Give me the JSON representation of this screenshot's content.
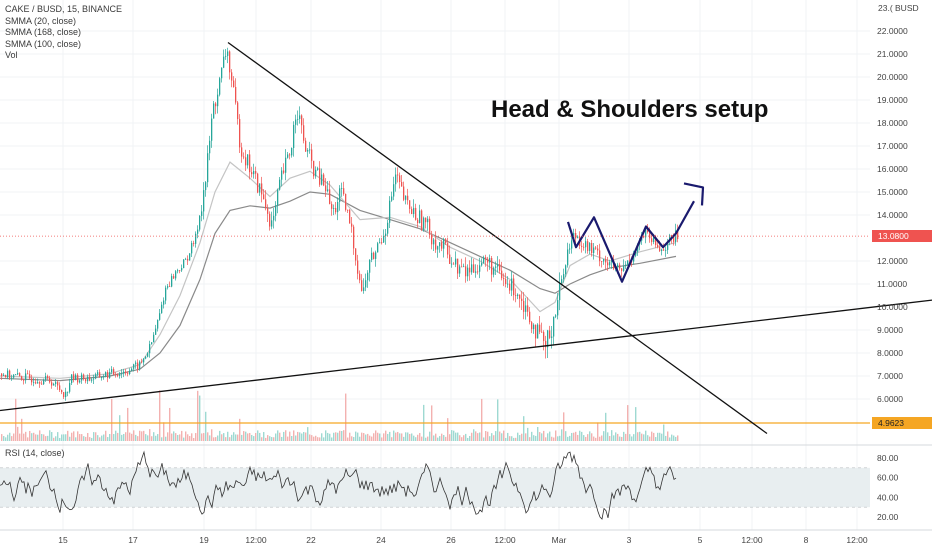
{
  "legend": {
    "symbol": "CAKE / BUSD, 15, BINANCE",
    "ma1": "SMMA (20, close)",
    "ma2": "SMMA (168, close)",
    "ma3": "SMMA (100, close)",
    "vol": "Vol"
  },
  "annotation": "Head & Shoulders setup",
  "unit_label": "23.( BUSD",
  "last_price_label": "13.0800",
  "level_label": "4.9623",
  "rsi_label": "RSI (14, close)",
  "colors": {
    "up": "#26a69a",
    "down": "#ef5350",
    "last_price": "#ef5350",
    "level_line": "#f5a623",
    "pattern": "#1a1a6e",
    "trend": "#111111",
    "rsi_band": "#e8eef0"
  },
  "chart_data": {
    "type": "candlestick",
    "y_axis": {
      "ticks": [
        "22.0000",
        "21.0000",
        "20.0000",
        "19.0000",
        "18.0000",
        "17.0000",
        "16.0000",
        "15.0000",
        "14.0000",
        "12.0000",
        "11.0000",
        "10.0000",
        "9.0000",
        "8.0000",
        "7.0000",
        "6.0000"
      ],
      "values": [
        22,
        21,
        20,
        19,
        18,
        17,
        16,
        15,
        14,
        12,
        11,
        10,
        9,
        8,
        7,
        6
      ],
      "ylim": [
        4.2,
        23.3
      ]
    },
    "x_axis": {
      "labels": [
        "15",
        "17",
        "19",
        "12:00",
        "22",
        "24",
        "26",
        "12:00",
        "Mar",
        "3",
        "5",
        "12:00",
        "8",
        "12:00"
      ]
    },
    "price_path": [
      [
        0,
        7.1
      ],
      [
        12,
        7.0
      ],
      [
        30,
        6.9
      ],
      [
        50,
        6.8
      ],
      [
        65,
        6.2
      ],
      [
        70,
        6.9
      ],
      [
        90,
        6.9
      ],
      [
        110,
        7.1
      ],
      [
        125,
        7.2
      ],
      [
        140,
        7.5
      ],
      [
        150,
        8.3
      ],
      [
        158,
        9.5
      ],
      [
        165,
        10.8
      ],
      [
        175,
        11.5
      ],
      [
        185,
        12.0
      ],
      [
        195,
        13.0
      ],
      [
        205,
        15.5
      ],
      [
        212,
        18.5
      ],
      [
        218,
        19.5
      ],
      [
        226,
        21.3
      ],
      [
        232,
        19.5
      ],
      [
        240,
        17.0
      ],
      [
        250,
        16.0
      ],
      [
        260,
        15.0
      ],
      [
        272,
        13.5
      ],
      [
        280,
        15.5
      ],
      [
        290,
        16.8
      ],
      [
        296,
        18.8
      ],
      [
        304,
        17.0
      ],
      [
        315,
        15.8
      ],
      [
        325,
        15.2
      ],
      [
        332,
        14.0
      ],
      [
        340,
        15.0
      ],
      [
        350,
        13.5
      ],
      [
        358,
        11.5
      ],
      [
        362,
        10.5
      ],
      [
        368,
        11.8
      ],
      [
        376,
        12.5
      ],
      [
        385,
        13.5
      ],
      [
        395,
        15.7
      ],
      [
        405,
        14.5
      ],
      [
        415,
        14.0
      ],
      [
        425,
        13.6
      ],
      [
        435,
        12.8
      ],
      [
        445,
        12.5
      ],
      [
        455,
        11.8
      ],
      [
        465,
        11.5
      ],
      [
        475,
        11.8
      ],
      [
        485,
        12.0
      ],
      [
        495,
        11.6
      ],
      [
        505,
        11.0
      ],
      [
        515,
        10.8
      ],
      [
        525,
        10.0
      ],
      [
        535,
        9.0
      ],
      [
        540,
        8.6
      ],
      [
        545,
        8.2
      ],
      [
        550,
        9.0
      ],
      [
        558,
        10.5
      ],
      [
        566,
        12.3
      ],
      [
        574,
        13.2
      ],
      [
        582,
        12.8
      ],
      [
        590,
        12.5
      ],
      [
        600,
        12.2
      ],
      [
        610,
        11.8
      ],
      [
        620,
        11.5
      ],
      [
        628,
        12.0
      ],
      [
        636,
        12.6
      ],
      [
        644,
        13.2
      ],
      [
        652,
        12.8
      ],
      [
        660,
        12.5
      ],
      [
        668,
        12.8
      ],
      [
        676,
        13.1
      ]
    ],
    "ma_slow_path": [
      [
        0,
        6.9
      ],
      [
        60,
        6.8
      ],
      [
        110,
        7.0
      ],
      [
        140,
        7.3
      ],
      [
        160,
        8.0
      ],
      [
        180,
        9.2
      ],
      [
        200,
        11.2
      ],
      [
        215,
        13.2
      ],
      [
        230,
        14.2
      ],
      [
        250,
        14.4
      ],
      [
        270,
        14.3
      ],
      [
        290,
        14.6
      ],
      [
        310,
        15.0
      ],
      [
        330,
        14.9
      ],
      [
        360,
        14.2
      ],
      [
        390,
        13.8
      ],
      [
        420,
        13.4
      ],
      [
        450,
        12.8
      ],
      [
        480,
        12.2
      ],
      [
        510,
        11.6
      ],
      [
        540,
        10.8
      ],
      [
        555,
        10.6
      ],
      [
        570,
        11.0
      ],
      [
        590,
        11.4
      ],
      [
        610,
        11.7
      ],
      [
        640,
        11.9
      ],
      [
        676,
        12.2
      ]
    ],
    "ma_fast_path": [
      [
        0,
        7.0
      ],
      [
        60,
        6.9
      ],
      [
        110,
        7.1
      ],
      [
        140,
        7.5
      ],
      [
        160,
        8.8
      ],
      [
        180,
        10.5
      ],
      [
        200,
        12.8
      ],
      [
        215,
        15.0
      ],
      [
        230,
        16.3
      ],
      [
        250,
        15.6
      ],
      [
        270,
        14.8
      ],
      [
        290,
        15.6
      ],
      [
        310,
        15.9
      ],
      [
        330,
        15.3
      ],
      [
        360,
        13.8
      ],
      [
        390,
        13.9
      ],
      [
        420,
        13.5
      ],
      [
        450,
        12.6
      ],
      [
        480,
        12.0
      ],
      [
        510,
        11.2
      ],
      [
        540,
        9.8
      ],
      [
        555,
        10.2
      ],
      [
        570,
        11.8
      ],
      [
        590,
        12.3
      ],
      [
        610,
        12.0
      ],
      [
        640,
        12.4
      ],
      [
        676,
        12.8
      ]
    ],
    "trendlines": [
      {
        "name": "descending",
        "from": [
          228,
          21.5
        ],
        "to": [
          767,
          4.5
        ]
      },
      {
        "name": "ascending",
        "from": [
          0,
          5.5
        ],
        "to": [
          932,
          10.3
        ]
      }
    ],
    "pattern_path": [
      [
        568,
        13.7
      ],
      [
        576,
        12.6
      ],
      [
        594,
        13.9
      ],
      [
        622,
        11.1
      ],
      [
        646,
        13.5
      ],
      [
        663,
        12.6
      ],
      [
        676,
        13.2
      ],
      [
        694,
        14.6
      ]
    ],
    "pattern_arrow_tip": [
      703,
      15.2
    ],
    "rsi": {
      "ticks": [
        "80.00",
        "60.00",
        "40.00",
        "20.00"
      ],
      "values": [
        80,
        60,
        40,
        20
      ],
      "band": [
        30,
        70
      ]
    }
  }
}
